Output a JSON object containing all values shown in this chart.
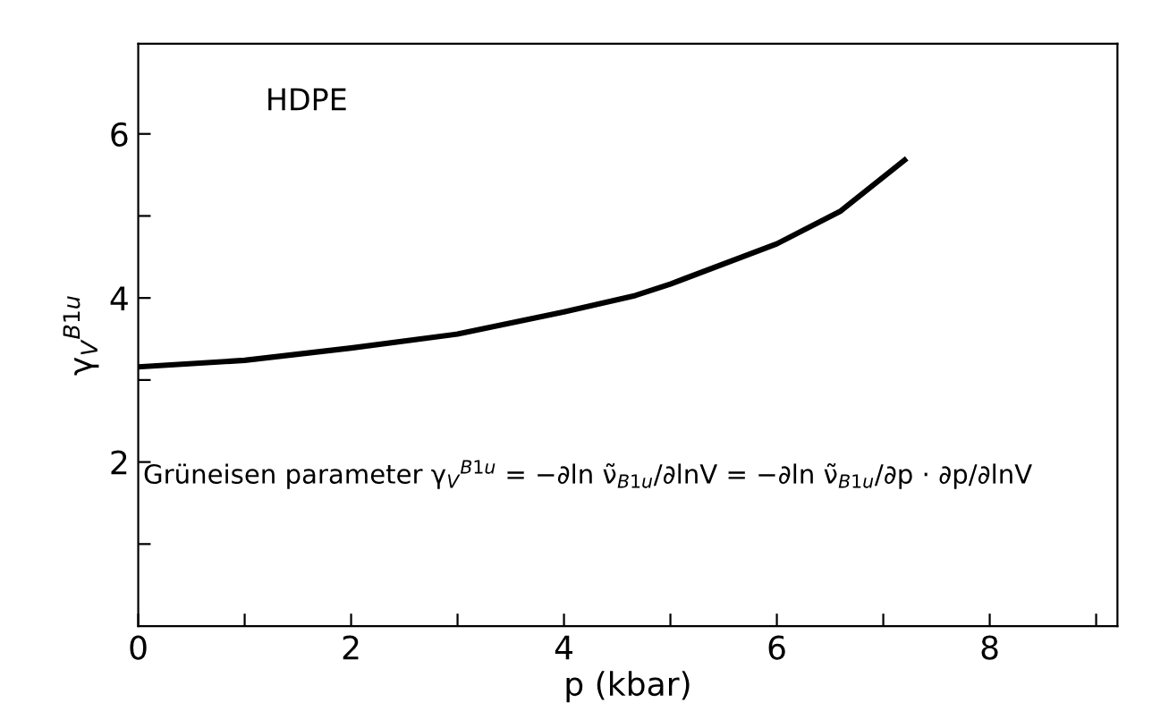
{
  "chart_data": {
    "type": "line",
    "xlabel": "p (kbar)",
    "ylabel": "γ$_{V}$$^{B1u}$",
    "x": [
      0,
      1,
      2,
      3,
      4,
      4.67,
      5,
      6,
      6.6,
      7.2
    ],
    "series": [
      {
        "color": "#000000",
        "values": [
          3.16,
          3.24,
          3.39,
          3.56,
          3.83,
          4.03,
          4.17,
          4.66,
          5.06,
          5.68
        ]
      }
    ],
    "xlim": [
      0,
      9.2
    ],
    "ylim": [
      0,
      7.1
    ],
    "xticks": [
      0,
      {
        "value": 1,
        "label": null
      },
      2,
      {
        "value": 3,
        "label": null
      },
      4,
      {
        "value": 5,
        "label": null
      },
      6,
      {
        "value": 7,
        "label": null
      },
      8,
      {
        "value": 9,
        "label": null
      }
    ],
    "yticks": [
      {
        "value": 1,
        "label": null
      },
      2,
      {
        "value": 3,
        "label": null
      },
      4,
      {
        "value": 5,
        "label": null
      },
      6
    ],
    "annotations": [
      "HDPE",
      "Grüneisen parameter γ$_{V}$$^{B1u}$ = −∂ln ν̃$_{B1u}$/∂lnV = −∂ln ν̃$_{B1u}$/∂p · ∂p/∂lnV"
    ],
    "grid": false,
    "legend": false,
    "marker": "none",
    "line_style": "solid"
  }
}
